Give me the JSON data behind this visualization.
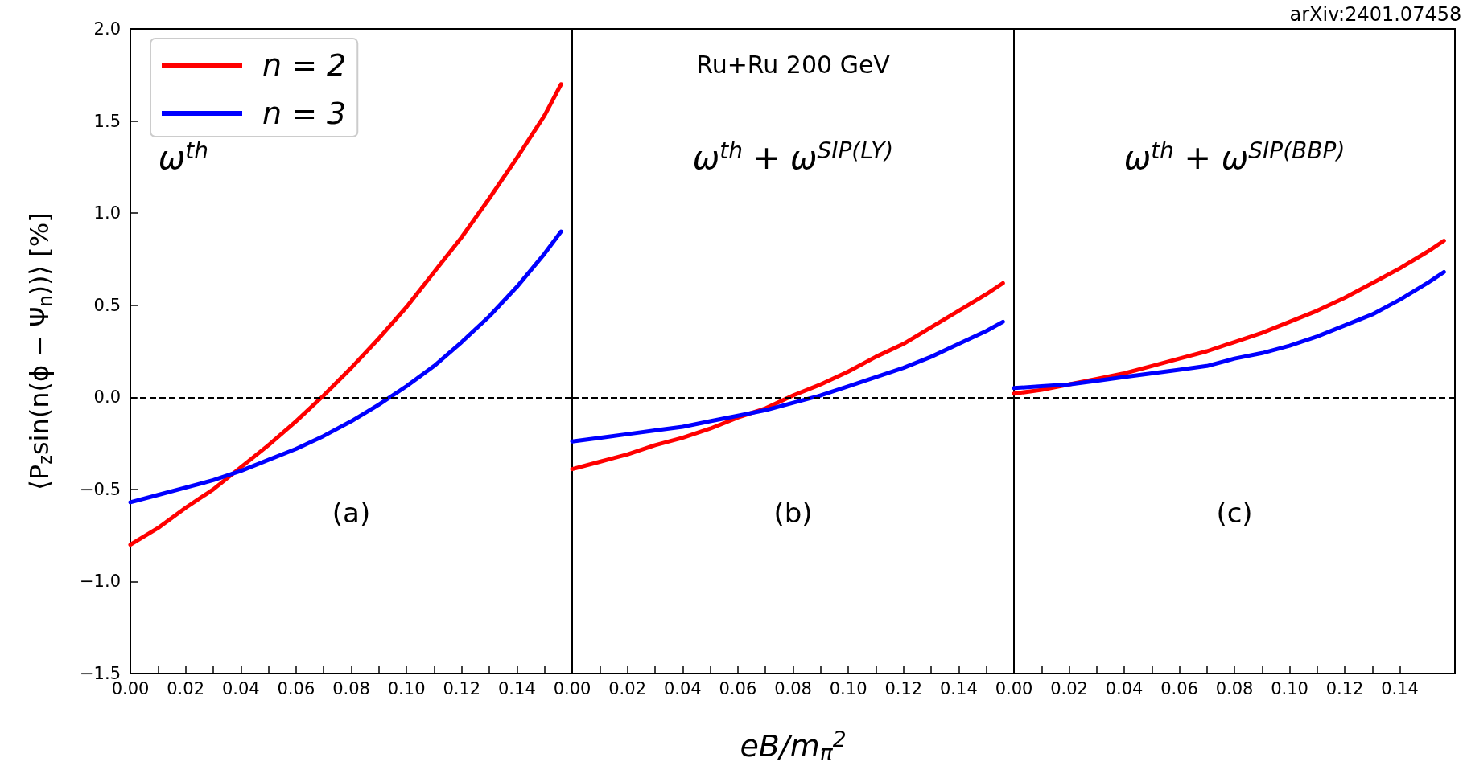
{
  "chart_data": [
    {
      "type": "line",
      "ylabel": "⟨P$_{z}$sin(n(ϕ − Ψ$_{n}$))⟩ [%]",
      "annotations": [
        "ω$^{th}$",
        "(a)"
      ],
      "legend": "top left",
      "line_style": "solid",
      "x": [
        0,
        0.01,
        0.02,
        0.03,
        0.04,
        0.05,
        0.06,
        0.07,
        0.08,
        0.09,
        0.1,
        0.11,
        0.12,
        0.13,
        0.14,
        0.15,
        0.156
      ],
      "series": [
        {
          "name": "n = 2",
          "color": "#ff0000",
          "values": [
            -0.8,
            -0.71,
            -0.6,
            -0.5,
            -0.38,
            -0.26,
            -0.13,
            0.01,
            0.16,
            0.32,
            0.49,
            0.68,
            0.87,
            1.08,
            1.3,
            1.53,
            1.7
          ]
        },
        {
          "name": "n = 3",
          "color": "#0000ff",
          "values": [
            -0.57,
            -0.53,
            -0.49,
            -0.45,
            -0.4,
            -0.34,
            -0.28,
            -0.21,
            -0.13,
            -0.04,
            0.06,
            0.17,
            0.3,
            0.44,
            0.6,
            0.78,
            0.9
          ]
        }
      ],
      "ref_lines": [
        {
          "axis": "y",
          "value": 0,
          "label": null,
          "color": "#000000",
          "line_style": "dashed"
        }
      ],
      "xlim": [
        0,
        0.16
      ],
      "xticks": [
        {
          "value": 0,
          "label": "0.00"
        },
        {
          "value": 0.01,
          "label": null
        },
        {
          "value": 0.02,
          "label": "0.02"
        },
        {
          "value": 0.03,
          "label": null
        },
        {
          "value": 0.04,
          "label": "0.04"
        },
        {
          "value": 0.05,
          "label": null
        },
        {
          "value": 0.06,
          "label": "0.06"
        },
        {
          "value": 0.07,
          "label": null
        },
        {
          "value": 0.08,
          "label": "0.08"
        },
        {
          "value": 0.09,
          "label": null
        },
        {
          "value": 0.1,
          "label": "0.10"
        },
        {
          "value": 0.11,
          "label": null
        },
        {
          "value": 0.12,
          "label": "0.12"
        },
        {
          "value": 0.13,
          "label": null
        },
        {
          "value": 0.14,
          "label": "0.14"
        },
        {
          "value": 0.15,
          "label": null
        }
      ],
      "ylim": [
        -1.5,
        2.0
      ],
      "yticks": [
        {
          "value": -1.5,
          "label": "−1.5"
        },
        {
          "value": -1,
          "label": "−1.0"
        },
        {
          "value": -0.5,
          "label": "−0.5"
        },
        {
          "value": 0,
          "label": "0.0"
        },
        {
          "value": 0.5,
          "label": "0.5"
        },
        {
          "value": 1,
          "label": "1.0"
        },
        {
          "value": 1.5,
          "label": "1.5"
        },
        {
          "value": 2,
          "label": "2.0"
        }
      ]
    },
    {
      "type": "line",
      "xlabel": "eB/m$_{π}$$^{2}$",
      "annotations": [
        "Ru+Ru 200 GeV",
        "ω$^{th}$ + ω$^{SIP(LY)}$",
        "(b)"
      ],
      "line_style": "solid",
      "tick_labels": "x",
      "x": [
        0,
        0.01,
        0.02,
        0.03,
        0.04,
        0.05,
        0.06,
        0.07,
        0.08,
        0.09,
        0.1,
        0.11,
        0.12,
        0.13,
        0.14,
        0.15,
        0.156
      ],
      "series": [
        {
          "color": "#ff0000",
          "values": [
            -0.39,
            -0.35,
            -0.31,
            -0.26,
            -0.22,
            -0.17,
            -0.11,
            -0.06,
            0.01,
            0.07,
            0.14,
            0.22,
            0.29,
            0.38,
            0.47,
            0.56,
            0.62
          ]
        },
        {
          "color": "#0000ff",
          "values": [
            -0.24,
            -0.22,
            -0.2,
            -0.18,
            -0.16,
            -0.13,
            -0.1,
            -0.07,
            -0.03,
            0.01,
            0.06,
            0.11,
            0.16,
            0.22,
            0.29,
            0.36,
            0.41
          ]
        }
      ],
      "ref_lines": [
        {
          "axis": "y",
          "value": 0,
          "label": null,
          "color": "#000000",
          "line_style": "dashed"
        }
      ],
      "xlim": [
        0,
        0.16
      ],
      "xticks": [
        {
          "value": 0,
          "label": "0.00"
        },
        {
          "value": 0.01,
          "label": null
        },
        {
          "value": 0.02,
          "label": "0.02"
        },
        {
          "value": 0.03,
          "label": null
        },
        {
          "value": 0.04,
          "label": "0.04"
        },
        {
          "value": 0.05,
          "label": null
        },
        {
          "value": 0.06,
          "label": "0.06"
        },
        {
          "value": 0.07,
          "label": null
        },
        {
          "value": 0.08,
          "label": "0.08"
        },
        {
          "value": 0.09,
          "label": null
        },
        {
          "value": 0.1,
          "label": "0.10"
        },
        {
          "value": 0.11,
          "label": null
        },
        {
          "value": 0.12,
          "label": "0.12"
        },
        {
          "value": 0.13,
          "label": null
        },
        {
          "value": 0.14,
          "label": "0.14"
        },
        {
          "value": 0.15,
          "label": null
        }
      ],
      "ylim": [
        -1.5,
        2.0
      ]
    },
    {
      "type": "line",
      "annotations": [
        "ω$^{th}$ + ω$^{SIP(BBP)}$",
        "(c)",
        "arXiv:2401.07458"
      ],
      "line_style": "solid",
      "tick_labels": "x",
      "x": [
        0,
        0.01,
        0.02,
        0.03,
        0.04,
        0.05,
        0.06,
        0.07,
        0.08,
        0.09,
        0.1,
        0.11,
        0.12,
        0.13,
        0.14,
        0.15,
        0.156
      ],
      "series": [
        {
          "color": "#ff0000",
          "values": [
            0.02,
            0.04,
            0.07,
            0.1,
            0.13,
            0.17,
            0.21,
            0.25,
            0.3,
            0.35,
            0.41,
            0.47,
            0.54,
            0.62,
            0.7,
            0.79,
            0.85
          ]
        },
        {
          "color": "#0000ff",
          "values": [
            0.05,
            0.06,
            0.07,
            0.09,
            0.11,
            0.13,
            0.15,
            0.17,
            0.21,
            0.24,
            0.28,
            0.33,
            0.39,
            0.45,
            0.53,
            0.62,
            0.68
          ]
        }
      ],
      "ref_lines": [
        {
          "axis": "y",
          "value": 0,
          "label": null,
          "color": "#000000",
          "line_style": "dashed"
        }
      ],
      "xlim": [
        0,
        0.16
      ],
      "xticks": [
        {
          "value": 0,
          "label": "0.00"
        },
        {
          "value": 0.01,
          "label": null
        },
        {
          "value": 0.02,
          "label": "0.02"
        },
        {
          "value": 0.03,
          "label": null
        },
        {
          "value": 0.04,
          "label": "0.04"
        },
        {
          "value": 0.05,
          "label": null
        },
        {
          "value": 0.06,
          "label": "0.06"
        },
        {
          "value": 0.07,
          "label": null
        },
        {
          "value": 0.08,
          "label": "0.08"
        },
        {
          "value": 0.09,
          "label": null
        },
        {
          "value": 0.1,
          "label": "0.10"
        },
        {
          "value": 0.11,
          "label": null
        },
        {
          "value": 0.12,
          "label": "0.12"
        },
        {
          "value": 0.13,
          "label": null
        },
        {
          "value": 0.14,
          "label": "0.14"
        }
      ],
      "ylim": [
        -1.5,
        2.0
      ]
    }
  ]
}
